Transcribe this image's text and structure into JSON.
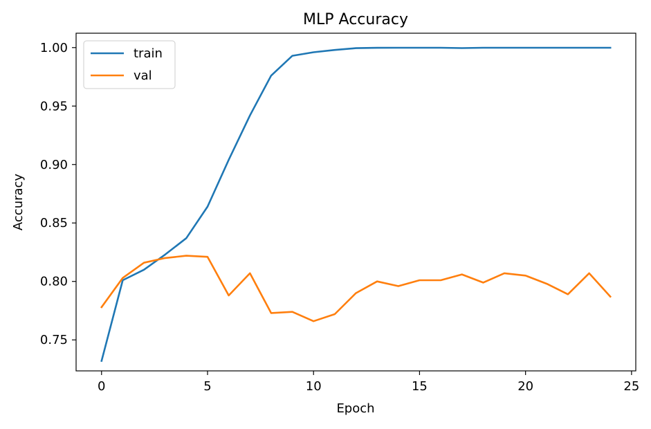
{
  "chart_data": {
    "type": "line",
    "title": "MLP Accuracy",
    "xlabel": "Epoch",
    "ylabel": "Accuracy",
    "xlim": [
      -1.2,
      25.2
    ],
    "ylim": [
      0.7235,
      1.0123
    ],
    "grid": false,
    "legend_position": "top-left",
    "x_ticks": [
      0,
      5,
      10,
      15,
      20,
      25
    ],
    "x_tick_labels": [
      "0",
      "5",
      "10",
      "15",
      "20",
      "25"
    ],
    "y_ticks": [
      0.75,
      0.8,
      0.85,
      0.9,
      0.95,
      1.0
    ],
    "y_tick_labels": [
      "0.75",
      "0.80",
      "0.85",
      "0.90",
      "0.95",
      "1.00"
    ],
    "x": [
      0,
      1,
      2,
      3,
      4,
      5,
      6,
      7,
      8,
      9,
      10,
      11,
      12,
      13,
      14,
      15,
      16,
      17,
      18,
      19,
      20,
      21,
      22,
      23,
      24
    ],
    "series": [
      {
        "name": "train",
        "color": "#1f77b4",
        "values": [
          0.732,
          0.801,
          0.81,
          0.823,
          0.837,
          0.864,
          0.904,
          0.942,
          0.976,
          0.993,
          0.996,
          0.998,
          0.9995,
          0.9998,
          0.9999,
          0.9999,
          0.9999,
          0.9996,
          0.9999,
          0.9999,
          0.9999,
          0.9999,
          0.9999,
          0.9999,
          0.9999
        ]
      },
      {
        "name": "val",
        "color": "#ff7f0e",
        "values": [
          0.778,
          0.803,
          0.816,
          0.82,
          0.822,
          0.821,
          0.788,
          0.807,
          0.773,
          0.774,
          0.766,
          0.772,
          0.79,
          0.8,
          0.796,
          0.801,
          0.801,
          0.806,
          0.799,
          0.807,
          0.805,
          0.798,
          0.789,
          0.807,
          0.787
        ]
      }
    ]
  }
}
